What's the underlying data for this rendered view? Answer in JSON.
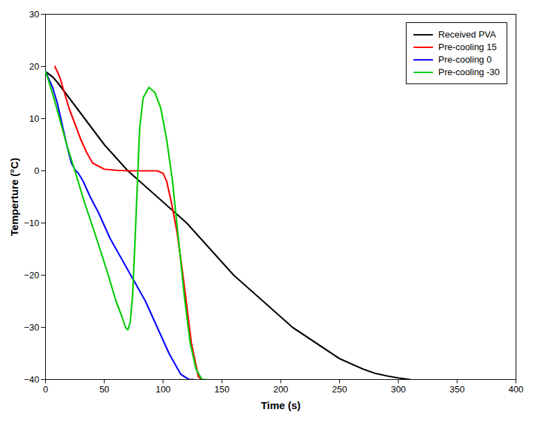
{
  "chart_data": {
    "type": "line",
    "xlabel": "Time (s)",
    "ylabel": "Temperture (°C)",
    "xlim": [
      0,
      400
    ],
    "ylim": [
      -40,
      30
    ],
    "xticks": [
      0,
      50,
      100,
      150,
      200,
      250,
      300,
      350,
      400
    ],
    "yticks": [
      -40,
      -30,
      -20,
      -10,
      0,
      10,
      20,
      30
    ],
    "legend": "upper right",
    "series": [
      {
        "name": "Received PVA",
        "color": "#000000",
        "x": [
          0,
          3,
          6,
          10,
          15,
          20,
          25,
          30,
          35,
          40,
          50,
          60,
          70,
          80,
          90,
          100,
          110,
          120,
          130,
          140,
          150,
          160,
          170,
          180,
          190,
          200,
          210,
          220,
          230,
          240,
          250,
          260,
          270,
          280,
          290,
          300,
          310
        ],
        "values": [
          19,
          18.5,
          18,
          17,
          15.5,
          14,
          12.5,
          11,
          9.5,
          8,
          5,
          2.5,
          0,
          -2,
          -4,
          -6,
          -8,
          -10,
          -12.5,
          -15,
          -17.5,
          -20,
          -22,
          -24,
          -26,
          -28,
          -30,
          -31.5,
          -33,
          -34.5,
          -36,
          -37,
          -38,
          -38.8,
          -39.3,
          -39.7,
          -40
        ]
      },
      {
        "name": "Pre-cooling 15",
        "color": "#ff0000",
        "x": [
          8,
          12,
          16,
          20,
          25,
          30,
          35,
          40,
          50,
          60,
          70,
          80,
          90,
          95,
          100,
          103,
          107,
          112,
          118,
          124,
          130,
          133
        ],
        "values": [
          20,
          18,
          15,
          12,
          9,
          6,
          3.5,
          1.5,
          0.3,
          0.1,
          0.0,
          0.0,
          0.0,
          0.0,
          -0.5,
          -2,
          -6,
          -12,
          -22,
          -33,
          -39.5,
          -40
        ]
      },
      {
        "name": "Pre-cooling 0",
        "color": "#0000ff",
        "x": [
          0,
          3,
          6,
          10,
          14,
          18,
          22,
          25,
          28,
          32,
          38,
          45,
          55,
          65,
          75,
          85,
          95,
          105,
          115,
          122,
          126
        ],
        "values": [
          19,
          17.5,
          16,
          13,
          9,
          5,
          1.5,
          0.2,
          -0.5,
          -2,
          -5,
          -8,
          -13,
          -17,
          -21,
          -25,
          -30,
          -35,
          -39,
          -40,
          -40
        ]
      },
      {
        "name": "Pre-cooling -30",
        "color": "#00cc00",
        "x": [
          0,
          3,
          7,
          12,
          18,
          25,
          33,
          42,
          52,
          60,
          65,
          68,
          70,
          72,
          74,
          76,
          78,
          80,
          83,
          88,
          93,
          98,
          103,
          108,
          113,
          118,
          123,
          128,
          133,
          137
        ],
        "values": [
          19,
          17,
          14,
          10,
          5,
          0,
          -6,
          -12,
          -19,
          -25,
          -28,
          -30,
          -30.5,
          -29,
          -24,
          -14,
          -3,
          8,
          14,
          16,
          15,
          12,
          6,
          -2,
          -13,
          -24,
          -33,
          -38,
          -40,
          -40
        ]
      }
    ]
  }
}
